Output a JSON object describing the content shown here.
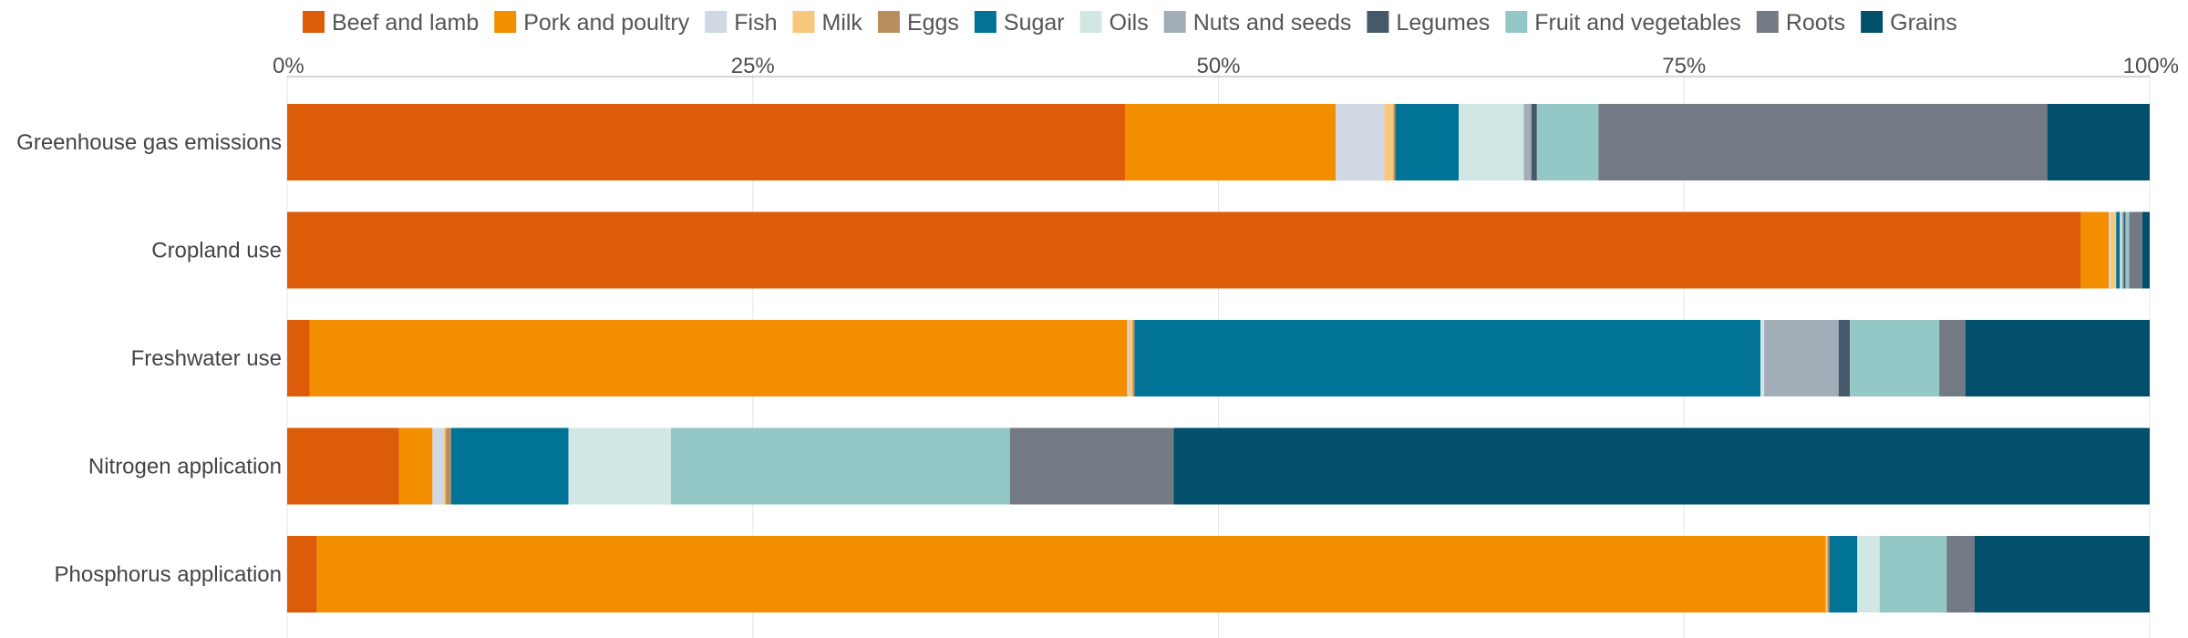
{
  "chart_data": {
    "type": "bar",
    "orientation": "horizontal",
    "stacked": true,
    "title": "",
    "xlabel": "",
    "ylabel": "",
    "xlim": [
      0,
      100
    ],
    "x_ticks": [
      "0%",
      "25%",
      "50%",
      "75%",
      "100%"
    ],
    "legend_position": "top",
    "grid": true,
    "categories": [
      "Greenhouse gas emissions",
      "Cropland use",
      "Freshwater use",
      "Nitrogen application",
      "Phosphorus application"
    ],
    "series": [
      {
        "name": "Beef and lamb",
        "color": "#dd5c0a",
        "values": [
          45.0,
          96.3,
          1.2,
          6.0,
          1.6
        ]
      },
      {
        "name": "Pork and poultry",
        "color": "#f28e00",
        "values": [
          11.3,
          1.5,
          43.9,
          1.8,
          81.0
        ]
      },
      {
        "name": "Fish",
        "color": "#cfd8e3",
        "values": [
          2.6,
          0.1,
          0.1,
          0.6,
          0.0
        ]
      },
      {
        "name": "Milk",
        "color": "#f7c77d",
        "values": [
          0.5,
          0.3,
          0.2,
          0.1,
          0.1
        ]
      },
      {
        "name": "Eggs",
        "color": "#b98e5e",
        "values": [
          0.1,
          0.0,
          0.1,
          0.3,
          0.1
        ]
      },
      {
        "name": "Sugar",
        "color": "#007396",
        "values": [
          3.4,
          0.2,
          33.6,
          6.3,
          1.5
        ]
      },
      {
        "name": "Oils",
        "color": "#d1e7e4",
        "values": [
          3.5,
          0.1,
          0.2,
          5.5,
          1.2
        ]
      },
      {
        "name": "Nuts and seeds",
        "color": "#a3adb8",
        "values": [
          0.4,
          0.1,
          4.0,
          0.0,
          0.0
        ]
      },
      {
        "name": "Legumes",
        "color": "#46596b",
        "values": [
          0.3,
          0.1,
          0.6,
          0.0,
          0.0
        ]
      },
      {
        "name": "Fruit and vegetables",
        "color": "#94c8c7",
        "values": [
          3.3,
          0.2,
          4.8,
          18.2,
          3.6
        ]
      },
      {
        "name": "Roots",
        "color": "#747a83",
        "values": [
          24.1,
          0.7,
          1.4,
          8.8,
          1.5
        ]
      },
      {
        "name": "Grains",
        "color": "#02506c",
        "values": [
          5.5,
          0.4,
          9.9,
          52.4,
          9.4
        ]
      }
    ]
  }
}
